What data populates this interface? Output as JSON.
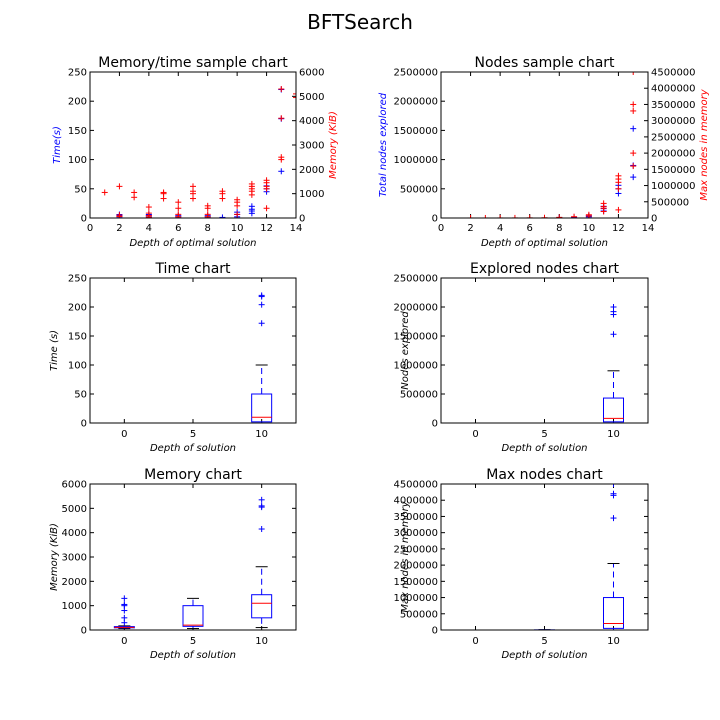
{
  "figure": {
    "title": "BFTSearch"
  },
  "chart_data": [
    {
      "id": "memtime",
      "type": "scatter",
      "title": "Memory/time sample chart",
      "xlabel": "Depth of optimal solution",
      "ylabel": "Time(s)",
      "y2label": "Memory (KiB)",
      "xlim": [
        0,
        14
      ],
      "ylim": [
        0,
        250
      ],
      "y2lim": [
        0,
        6000
      ],
      "xticks": [
        "0",
        "2",
        "4",
        "6",
        "8",
        "10",
        "12",
        "14"
      ],
      "yticks": [
        "0",
        "50",
        "100",
        "150",
        "200",
        "250"
      ],
      "y2ticks": [
        "0",
        "1000",
        "2000",
        "3000",
        "4000",
        "5000",
        "6000"
      ],
      "colors": {
        "left": "#0000ff",
        "right": "#ff0000"
      },
      "series": [
        {
          "axis": "left",
          "color": "#0000ff",
          "marker": "+",
          "points": [
            [
              2,
              2
            ],
            [
              2,
              4
            ],
            [
              2,
              6
            ],
            [
              4,
              2
            ],
            [
              4,
              4
            ],
            [
              4,
              6
            ],
            [
              6,
              2
            ],
            [
              6,
              4
            ],
            [
              8,
              2
            ],
            [
              8,
              4
            ],
            [
              9,
              1
            ],
            [
              10,
              2
            ],
            [
              10,
              6
            ],
            [
              10,
              10
            ],
            [
              11,
              8
            ],
            [
              11,
              12
            ],
            [
              11,
              15
            ],
            [
              11,
              20
            ],
            [
              12,
              45
            ],
            [
              12,
              50
            ],
            [
              12,
              55
            ],
            [
              13,
              80
            ],
            [
              13,
              170
            ],
            [
              13,
              220
            ]
          ]
        },
        {
          "axis": "right",
          "color": "#ff0000",
          "marker": "+",
          "points": [
            [
              1,
              1050
            ],
            [
              2,
              60
            ],
            [
              2,
              120
            ],
            [
              2,
              1300
            ],
            [
              3,
              850
            ],
            [
              3,
              1050
            ],
            [
              4,
              40
            ],
            [
              4,
              100
            ],
            [
              4,
              200
            ],
            [
              4,
              450
            ],
            [
              5,
              800
            ],
            [
              5,
              1000
            ],
            [
              5,
              1050
            ],
            [
              6,
              50
            ],
            [
              6,
              150
            ],
            [
              6,
              400
            ],
            [
              6,
              650
            ],
            [
              7,
              800
            ],
            [
              7,
              1000
            ],
            [
              7,
              1100
            ],
            [
              7,
              1300
            ],
            [
              8,
              50
            ],
            [
              8,
              150
            ],
            [
              8,
              400
            ],
            [
              8,
              500
            ],
            [
              9,
              800
            ],
            [
              9,
              1000
            ],
            [
              9,
              1100
            ],
            [
              10,
              150
            ],
            [
              10,
              500
            ],
            [
              10,
              650
            ],
            [
              10,
              750
            ],
            [
              11,
              950
            ],
            [
              11,
              1100
            ],
            [
              11,
              1200
            ],
            [
              11,
              1300
            ],
            [
              11,
              1400
            ],
            [
              12,
              400
            ],
            [
              12,
              1200
            ],
            [
              12,
              1300
            ],
            [
              12,
              1450
            ],
            [
              12,
              1550
            ],
            [
              13,
              2400
            ],
            [
              13,
              2500
            ],
            [
              13,
              4100
            ],
            [
              13,
              5300
            ],
            [
              14,
              4950
            ],
            [
              14,
              5100
            ]
          ]
        }
      ]
    },
    {
      "id": "nodes",
      "type": "scatter",
      "title": "Nodes sample chart",
      "xlabel": "Depth of optimal solution",
      "ylabel": "Total nodes explored",
      "y2label": "Max nodes in memory",
      "xlim": [
        0,
        14
      ],
      "ylim": [
        0,
        2500000
      ],
      "y2lim": [
        0,
        4500000
      ],
      "xticks": [
        "0",
        "2",
        "4",
        "6",
        "8",
        "10",
        "12",
        "14"
      ],
      "yticks": [
        "0",
        "500000",
        "1000000",
        "1500000",
        "2000000",
        "2500000"
      ],
      "y2ticks": [
        "0",
        "500000",
        "1000000",
        "1500000",
        "2000000",
        "2500000",
        "3000000",
        "3500000",
        "4000000",
        "4500000"
      ],
      "colors": {
        "left": "#0000ff",
        "right": "#ff0000"
      },
      "series": [
        {
          "axis": "left",
          "color": "#0000ff",
          "marker": "+",
          "points": [
            [
              8,
              5000
            ],
            [
              9,
              10000
            ],
            [
              10,
              20000
            ],
            [
              10,
              40000
            ],
            [
              11,
              120000
            ],
            [
              11,
              160000
            ],
            [
              11,
              200000
            ],
            [
              12,
              420000
            ],
            [
              12,
              500000
            ],
            [
              12,
              560000
            ],
            [
              13,
              700000
            ],
            [
              13,
              900000
            ],
            [
              13,
              1530000
            ]
          ]
        },
        {
          "axis": "right",
          "color": "#ff0000",
          "marker": "+",
          "points": [
            [
              2,
              1000
            ],
            [
              3,
              1000
            ],
            [
              4,
              2000
            ],
            [
              5,
              3000
            ],
            [
              6,
              5000
            ],
            [
              7,
              8000
            ],
            [
              8,
              20000
            ],
            [
              9,
              40000
            ],
            [
              10,
              60000
            ],
            [
              10,
              100000
            ],
            [
              11,
              200000
            ],
            [
              11,
              300000
            ],
            [
              11,
              350000
            ],
            [
              11,
              450000
            ],
            [
              12,
              250000
            ],
            [
              12,
              900000
            ],
            [
              12,
              1100000
            ],
            [
              12,
              1200000
            ],
            [
              12,
              1300000
            ],
            [
              13,
              1600000
            ],
            [
              13,
              2000000
            ],
            [
              13,
              3300000
            ],
            [
              13,
              3500000
            ],
            [
              13,
              4500000
            ]
          ]
        }
      ]
    },
    {
      "id": "time_box",
      "type": "box",
      "title": "Time chart",
      "xlabel": "Depth of solution",
      "ylabel": "Time (s)",
      "ylim": [
        0,
        250
      ],
      "xlim": [
        -2.5,
        12.5
      ],
      "xticks": [
        "0",
        "5",
        "10"
      ],
      "yticks": [
        "0",
        "50",
        "100",
        "150",
        "200",
        "250"
      ],
      "boxes": [
        {
          "category": "10",
          "min": 0,
          "q1": 2,
          "median": 10,
          "q3": 50,
          "max": 100,
          "outliers": [
            172,
            204,
            218,
            220
          ]
        }
      ]
    },
    {
      "id": "nodes_box",
      "type": "box",
      "title": "Explored nodes chart",
      "xlabel": "Depth of solution",
      "ylabel": "Nodes explored",
      "ylim": [
        0,
        2500000
      ],
      "xlim": [
        -2.5,
        12.5
      ],
      "xticks": [
        "0",
        "5",
        "10"
      ],
      "yticks": [
        "0",
        "500000",
        "1000000",
        "1500000",
        "2000000",
        "2500000"
      ],
      "boxes": [
        {
          "category": "10",
          "min": 0,
          "q1": 20000,
          "median": 80000,
          "q3": 430000,
          "max": 900000,
          "outliers": [
            1530000,
            1870000,
            1920000,
            2000000
          ]
        }
      ]
    },
    {
      "id": "memory_box",
      "type": "box",
      "title": "Memory chart",
      "xlabel": "Depth of solution",
      "ylabel": "Memory (KiB)",
      "ylim": [
        0,
        6000
      ],
      "xlim": [
        -2.5,
        12.5
      ],
      "xticks": [
        "0",
        "5",
        "10"
      ],
      "yticks": [
        "0",
        "1000",
        "2000",
        "3000",
        "4000",
        "5000",
        "6000"
      ],
      "boxes": [
        {
          "category": "0",
          "min": 60,
          "q1": 90,
          "median": 110,
          "q3": 140,
          "max": 170,
          "outliers": [
            300,
            500,
            800,
            1000,
            1050,
            1300
          ]
        },
        {
          "category": "5",
          "min": 60,
          "q1": 150,
          "median": 200,
          "q3": 1000,
          "max": 1300,
          "outliers": []
        },
        {
          "category": "10",
          "min": 100,
          "q1": 500,
          "median": 1100,
          "q3": 1450,
          "max": 2600,
          "outliers": [
            4150,
            5050,
            5100,
            5350
          ]
        }
      ]
    },
    {
      "id": "maxnodes_box",
      "type": "box",
      "title": "Max nodes chart",
      "xlabel": "Depth of solution",
      "ylabel": "Max nodes in memory",
      "ylim": [
        0,
        4500000
      ],
      "xlim": [
        -2.5,
        12.5
      ],
      "xticks": [
        "0",
        "5",
        "10"
      ],
      "yticks": [
        "0",
        "500000",
        "1000000",
        "1500000",
        "2000000",
        "2500000",
        "3000000",
        "3500000",
        "4000000",
        "4500000"
      ],
      "boxes": [
        {
          "category": "0",
          "min": 0,
          "q1": 0,
          "median": 0,
          "q3": 0,
          "max": 0,
          "outliers": []
        },
        {
          "category": "5",
          "min": 0,
          "q1": 0,
          "median": 0,
          "q3": 5000,
          "max": 10000,
          "outliers": []
        },
        {
          "category": "10",
          "min": 0,
          "q1": 50000,
          "median": 200000,
          "q3": 1000000,
          "max": 2050000,
          "outliers": [
            3450000,
            4150000,
            4200000,
            4500000
          ]
        }
      ]
    }
  ]
}
